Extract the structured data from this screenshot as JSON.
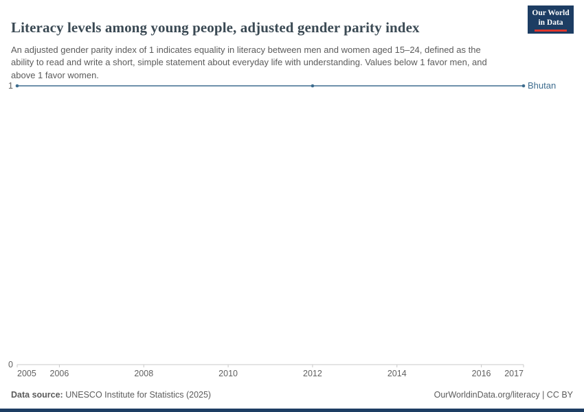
{
  "header": {
    "title": "Literacy levels among young people, adjusted gender parity index",
    "subtitle": "An adjusted gender parity index of 1 indicates equality in literacy between men and women aged 15–24, defined as the ability to read and write a short, simple statement about everyday life with understanding. Values below 1 favor men, and above 1 favor women.",
    "logo": {
      "line1": "Our World",
      "line2": "in Data",
      "background_color": "#1d3d63",
      "accent_color": "#e0362c"
    }
  },
  "chart_data": {
    "type": "line",
    "title": "Literacy levels among young people, adjusted gender parity index",
    "xlabel": "",
    "ylabel": "",
    "xlim": [
      2005,
      2017
    ],
    "ylim": [
      0,
      1
    ],
    "x_ticks": [
      2005,
      2006,
      2008,
      2010,
      2012,
      2014,
      2016,
      2017
    ],
    "y_ticks": [
      1,
      0
    ],
    "grid": false,
    "legend_position": "end-of-line-label",
    "series": [
      {
        "name": "Bhutan",
        "color": "#3d6c8e",
        "x": [
          2005,
          2012,
          2017
        ],
        "values": [
          1,
          1,
          1
        ]
      }
    ]
  },
  "footer": {
    "source_label": "Data source:",
    "source_text": " UNESCO Institute for Statistics (2025)",
    "right_text": "OurWorldinData.org/literacy | CC BY"
  },
  "colors": {
    "axis": "#c8c8c8",
    "tick_text": "#606060",
    "title_text": "#3b4a54",
    "subtitle_text": "#5b5b5b",
    "bottom_bar": "#1d3d63"
  }
}
